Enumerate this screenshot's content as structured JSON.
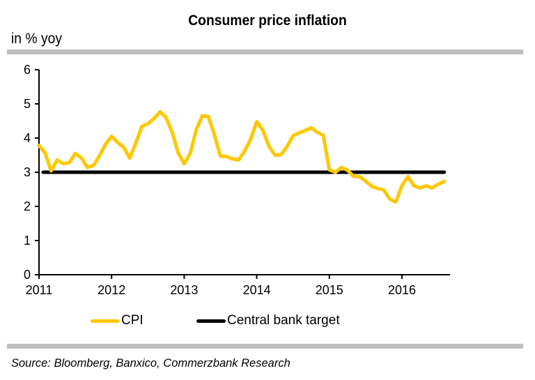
{
  "chart_data": {
    "type": "line",
    "title": "Consumer price inflation",
    "ylabel": "in % yoy",
    "xlabel": "",
    "ylim": [
      0,
      6
    ],
    "yticks": [
      "0",
      "1",
      "2",
      "3",
      "4",
      "5",
      "6"
    ],
    "xticks": [
      "2011",
      "2012",
      "2013",
      "2014",
      "2015",
      "2016"
    ],
    "x_start": "2011-01",
    "x_end": "2016-08",
    "x_frequency": "monthly",
    "grid": false,
    "legend_position": "bottom",
    "series": [
      {
        "name": "CPI",
        "color": "#ffc800",
        "values": [
          3.78,
          3.57,
          3.04,
          3.36,
          3.25,
          3.28,
          3.55,
          3.42,
          3.14,
          3.2,
          3.48,
          3.82,
          4.05,
          3.87,
          3.73,
          3.41,
          3.85,
          4.34,
          4.42,
          4.57,
          4.77,
          4.6,
          4.18,
          3.57,
          3.25,
          3.55,
          4.25,
          4.65,
          4.63,
          4.09,
          3.47,
          3.46,
          3.39,
          3.36,
          3.62,
          3.97,
          4.48,
          4.23,
          3.76,
          3.5,
          3.51,
          3.75,
          4.07,
          4.15,
          4.22,
          4.3,
          4.17,
          4.08,
          3.07,
          3.0,
          3.14,
          3.06,
          2.88,
          2.87,
          2.74,
          2.59,
          2.52,
          2.48,
          2.21,
          2.13,
          2.61,
          2.87,
          2.6,
          2.54,
          2.6,
          2.54,
          2.65,
          2.73
        ]
      },
      {
        "name": "Central bank target",
        "color": "#000000",
        "constant": 3.0
      }
    ]
  },
  "source": "Source: Bloomberg, Banxico, Commerzbank Research"
}
